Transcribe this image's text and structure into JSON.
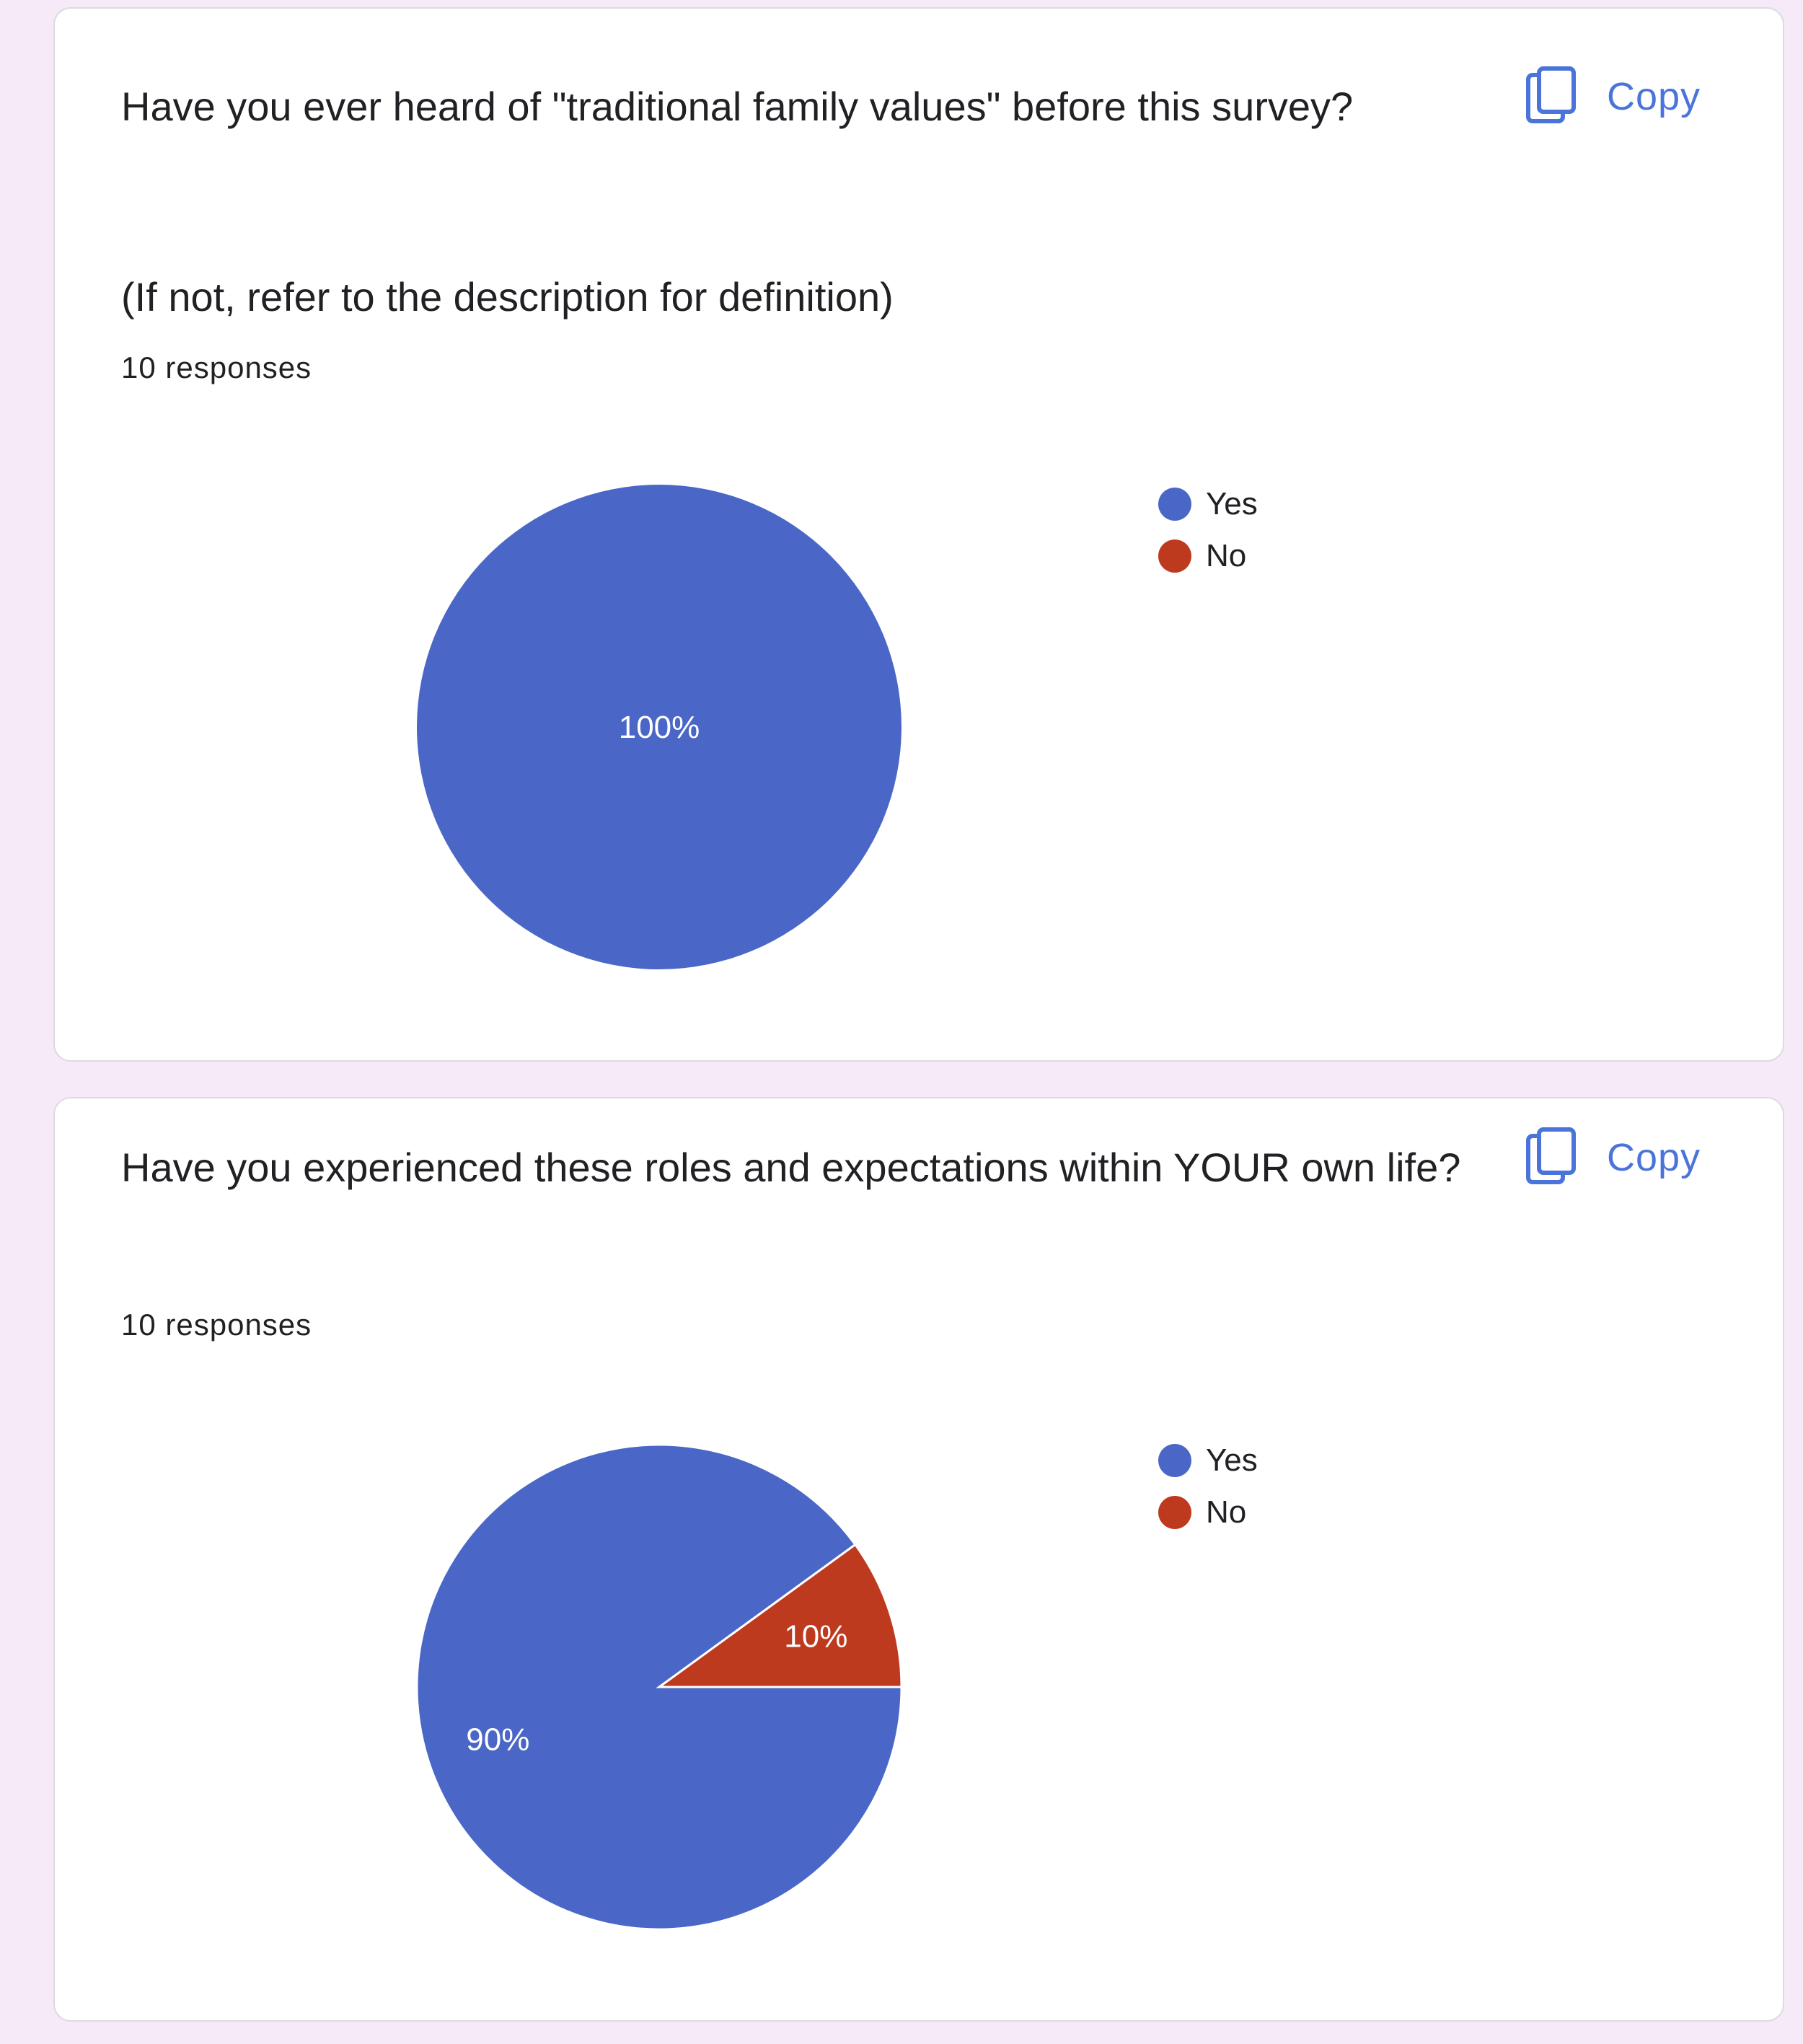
{
  "colors": {
    "yes": "#4a67c7",
    "no": "#bd3a1f",
    "accent": "#4a74d9"
  },
  "cards": [
    {
      "question": "Have you ever heard of \"traditional family values\" before this survey?",
      "note": "(If not, refer to the description for definition)",
      "responses": "10 responses",
      "copy_label": "Copy",
      "legend": [
        {
          "label": "Yes",
          "icon": "circle"
        },
        {
          "label": "No",
          "icon": "circle"
        }
      ]
    },
    {
      "question": "Have you experienced these roles and expectations within YOUR own life?",
      "responses": "10 responses",
      "copy_label": "Copy",
      "legend": [
        {
          "label": "Yes",
          "icon": "circle"
        },
        {
          "label": "No",
          "icon": "circle"
        }
      ]
    }
  ],
  "chart_data": [
    {
      "type": "pie",
      "categories": [
        "Yes",
        "No"
      ],
      "values": [
        100,
        0
      ],
      "data_labels": [
        "100%",
        ""
      ],
      "legend_position": "right"
    },
    {
      "type": "pie",
      "categories": [
        "Yes",
        "No"
      ],
      "values": [
        90,
        10
      ],
      "data_labels": [
        "90%",
        "10%"
      ],
      "legend_position": "right"
    }
  ]
}
